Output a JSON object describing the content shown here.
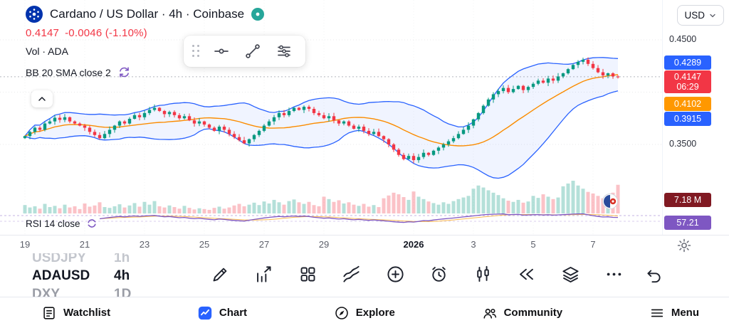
{
  "header": {
    "title": "Cardano / US Dollar · 4h · Coinbase",
    "price": "0.4147",
    "change": "-0.0046 (-1.10%)",
    "vol_label": "Vol · ADA",
    "indicator_label": "BB 20 SMA close 2",
    "rsi_label": "RSI 14 close",
    "currency": "USD"
  },
  "price_axis": {
    "top_label": "0.4500",
    "bottom_label": "0.3500",
    "upper_band": "0.4289",
    "last_price": "0.4147",
    "countdown": "06:29",
    "sma": "0.4102",
    "lower_band": "0.3915",
    "volume": "7.18 M",
    "rsi": "57.21"
  },
  "time_axis": {
    "labels": [
      "19",
      "21",
      "23",
      "25",
      "27",
      "29",
      "2026",
      "3",
      "5",
      "7"
    ]
  },
  "watchlist_preview": [
    {
      "symbol": "USDJPY",
      "tf": "1h"
    },
    {
      "symbol": "ADAUSD",
      "tf": "4h"
    },
    {
      "symbol": "DXY",
      "tf": "1D"
    }
  ],
  "nav": [
    {
      "label": "Watchlist"
    },
    {
      "label": "Chart"
    },
    {
      "label": "Explore"
    },
    {
      "label": "Community"
    },
    {
      "label": "Menu"
    }
  ],
  "icons": {
    "header": [
      "cardano-logo-icon",
      "market-status-icon",
      "sync-icon"
    ],
    "drawing_toolbar": [
      "drag-handle-icon",
      "horizontal-line-tool-icon",
      "trend-line-tool-icon",
      "parallel-channel-tool-icon"
    ],
    "bottom_toolbar": [
      "draw-icon",
      "indicators-icon",
      "layout-grid-icon",
      "multi-line-icon",
      "add-icon",
      "alert-clock-icon",
      "bar-pattern-icon",
      "replay-rewind-icon",
      "layers-icon",
      "more-icon",
      "undo-icon"
    ],
    "nav": [
      "watchlist-icon",
      "chart-icon",
      "explore-icon",
      "community-icon",
      "menu-icon"
    ],
    "misc": [
      "collapse-chevron-icon",
      "settings-gear-icon",
      "currency-chevron-icon",
      "economic-event-icon"
    ]
  },
  "colors": {
    "up": "#089981",
    "down": "#F23645",
    "band": "#2962FF",
    "band_fill": "rgba(41,98,255,0.07)",
    "sma": "#FB8C00",
    "rsi": "#7E57C2",
    "rsi_ma": "#F9A825",
    "vol_up": "rgba(8,153,129,0.30)",
    "vol_down": "rgba(242,54,69,0.30)",
    "badge_blue": "#2962FF",
    "badge_red": "#F23645",
    "badge_orange": "#FF9800",
    "badge_vol": "#801922",
    "badge_rsi": "#7E57C2",
    "nav_active": "#2962FF"
  },
  "chart_data": {
    "type": "candlestick",
    "symbol": "ADAUSD",
    "interval": "4h",
    "exchange": "Coinbase",
    "title": "Cardano / US Dollar · 4h · Coinbase",
    "ylim": [
      0.325,
      0.458
    ],
    "y_tick_labels": [
      "0.4500",
      "0.3500"
    ],
    "x_tick_labels": [
      "19",
      "21",
      "23",
      "25",
      "27",
      "29",
      "2026",
      "3",
      "5",
      "7"
    ],
    "x_tick_indices": [
      0,
      12,
      24,
      36,
      48,
      60,
      78,
      90,
      102,
      114
    ],
    "last_price": 0.4147,
    "change": -0.0046,
    "change_pct": -1.1,
    "volume_current": "7.18 M",
    "indicators": {
      "bollinger": {
        "length": 20,
        "source": "SMA close",
        "mult": 2,
        "upper": 0.4289,
        "basis": 0.4102,
        "lower": 0.3915
      },
      "rsi": {
        "length": 14,
        "source": "close",
        "value": 57.21
      }
    },
    "closes": [
      0.358,
      0.362,
      0.366,
      0.364,
      0.37,
      0.372,
      0.3755,
      0.3735,
      0.376,
      0.372,
      0.37,
      0.368,
      0.366,
      0.362,
      0.359,
      0.356,
      0.36,
      0.364,
      0.368,
      0.372,
      0.37,
      0.3745,
      0.378,
      0.376,
      0.38,
      0.383,
      0.385,
      0.382,
      0.379,
      0.381,
      0.378,
      0.375,
      0.377,
      0.373,
      0.37,
      0.372,
      0.369,
      0.366,
      0.363,
      0.367,
      0.364,
      0.36,
      0.357,
      0.354,
      0.351,
      0.355,
      0.359,
      0.363,
      0.368,
      0.372,
      0.376,
      0.38,
      0.378,
      0.382,
      0.385,
      0.383,
      0.386,
      0.384,
      0.38,
      0.378,
      0.375,
      0.377,
      0.373,
      0.37,
      0.372,
      0.368,
      0.365,
      0.367,
      0.363,
      0.36,
      0.362,
      0.358,
      0.355,
      0.35,
      0.345,
      0.34,
      0.336,
      0.339,
      0.335,
      0.338,
      0.342,
      0.34,
      0.344,
      0.347,
      0.35,
      0.353,
      0.356,
      0.36,
      0.364,
      0.368,
      0.374,
      0.38,
      0.387,
      0.393,
      0.398,
      0.401,
      0.404,
      0.4,
      0.403,
      0.406,
      0.402,
      0.405,
      0.408,
      0.411,
      0.409,
      0.413,
      0.411,
      0.415,
      0.418,
      0.422,
      0.426,
      0.429,
      0.431,
      0.427,
      0.423,
      0.419,
      0.416,
      0.418,
      0.415,
      0.4147
    ],
    "volumes_m": [
      2.1,
      1.5,
      1.8,
      1.2,
      2.4,
      1.6,
      1.9,
      1.3,
      2.2,
      1.5,
      1.8,
      1.1,
      2.5,
      1.7,
      2.0,
      2.8,
      1.6,
      1.4,
      1.8,
      2.3,
      1.5,
      2.0,
      2.6,
      1.7,
      2.9,
      2.2,
      3.1,
      1.8,
      1.5,
      2.0,
      1.6,
      1.2,
      1.9,
      1.4,
      1.0,
      1.3,
      1.1,
      0.9,
      1.4,
      1.7,
      1.2,
      1.5,
      2.0,
      2.4,
      1.8,
      2.2,
      2.7,
      2.1,
      3.0,
      2.5,
      3.4,
      2.8,
      2.2,
      3.1,
      3.5,
      2.8,
      2.4,
      2.9,
      2.1,
      1.8,
      4.2,
      3.6,
      2.9,
      3.3,
      2.5,
      2.8,
      2.2,
      1.9,
      2.4,
      1.7,
      2.1,
      1.6,
      3.8,
      4.5,
      5.2,
      4.8,
      4.1,
      3.4,
      5.5,
      4.2,
      3.6,
      3.0,
      2.6,
      2.2,
      2.8,
      2.4,
      3.1,
      3.6,
      4.0,
      4.4,
      6.2,
      7.0,
      6.5,
      5.8,
      5.2,
      4.6,
      3.8,
      3.2,
      2.9,
      3.4,
      2.7,
      3.0,
      4.4,
      3.9,
      4.8,
      4.2,
      3.6,
      4.0,
      6.8,
      7.5,
      8.2,
      7.0,
      6.2,
      5.4,
      5.0,
      4.4,
      3.8,
      4.6,
      5.2,
      7.18
    ]
  }
}
